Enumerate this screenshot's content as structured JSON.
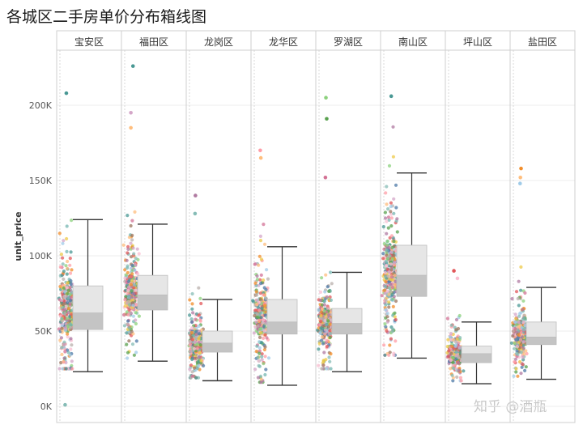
{
  "title": "各城区二手房单价分布箱线图",
  "watermark": "知乎 @酒瓶",
  "chart_data": {
    "type": "boxplot-with-jitter",
    "ylabel": "unit_price",
    "ylim": [
      0,
      230000
    ],
    "yticks": [
      {
        "value": 0,
        "label": "0K"
      },
      {
        "value": 50000,
        "label": "50K"
      },
      {
        "value": 100000,
        "label": "100K"
      },
      {
        "value": 150000,
        "label": "150K"
      },
      {
        "value": 200000,
        "label": "200K"
      }
    ],
    "grid": true,
    "categories": [
      "宝安区",
      "福田区",
      "龙岗区",
      "龙华区",
      "罗湖区",
      "南山区",
      "坪山区",
      "盐田区"
    ],
    "boxes": [
      {
        "category": "宝安区",
        "whisker_low": 23000,
        "q1": 51000,
        "median": 62000,
        "q3": 80000,
        "whisker_high": 124000,
        "outliers": [
          208000,
          1000
        ]
      },
      {
        "category": "福田区",
        "whisker_low": 30000,
        "q1": 64000,
        "median": 74000,
        "q3": 87000,
        "whisker_high": 121000,
        "outliers": [
          226000,
          195000,
          185000
        ]
      },
      {
        "category": "龙岗区",
        "whisker_low": 17000,
        "q1": 36000,
        "median": 42000,
        "q3": 50000,
        "whisker_high": 71000,
        "outliers": [
          140000,
          128000
        ]
      },
      {
        "category": "龙华区",
        "whisker_low": 14000,
        "q1": 48000,
        "median": 56000,
        "q3": 71000,
        "whisker_high": 106000,
        "outliers": [
          170000,
          165000
        ]
      },
      {
        "category": "罗湖区",
        "whisker_low": 23000,
        "q1": 48000,
        "median": 55000,
        "q3": 65000,
        "whisker_high": 89000,
        "outliers": [
          205000,
          191000,
          152000
        ]
      },
      {
        "category": "南山区",
        "whisker_low": 32000,
        "q1": 73000,
        "median": 87000,
        "q3": 107000,
        "whisker_high": 155000,
        "outliers": [
          206000
        ]
      },
      {
        "category": "坪山区",
        "whisker_low": 15000,
        "q1": 29000,
        "median": 35000,
        "q3": 40000,
        "whisker_high": 56000,
        "outliers": [
          90000,
          85000
        ]
      },
      {
        "category": "盐田区",
        "whisker_low": 18000,
        "q1": 41000,
        "median": 46000,
        "q3": 56000,
        "whisker_high": 79000,
        "outliers": [
          158000,
          152000,
          148000
        ]
      }
    ],
    "point_colors": [
      "#4e79a7",
      "#f28e2b",
      "#e15759",
      "#76b7b2",
      "#59a14f",
      "#edc948",
      "#b07aa1",
      "#ff9da7",
      "#9c755f",
      "#bab0ac",
      "#8cd17d",
      "#86bcb6",
      "#d4a6c8",
      "#fabfd2",
      "#a0cbe8",
      "#ffbe7d",
      "#499894",
      "#d37295"
    ]
  }
}
